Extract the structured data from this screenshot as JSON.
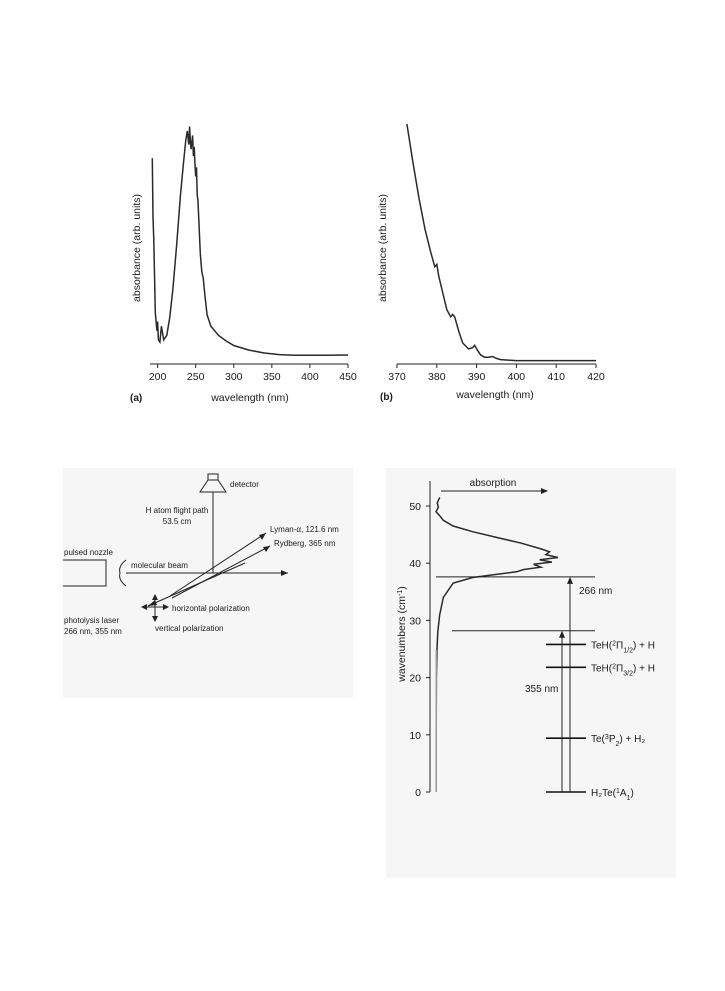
{
  "chart_data": [
    {
      "type": "line",
      "panel_label": "(a)",
      "xlabel": "wavelength (nm)",
      "ylabel": "absorbance (arb. units)",
      "xlim": [
        190,
        450
      ],
      "xticks": [
        200,
        250,
        300,
        350,
        400,
        450
      ],
      "x": [
        193,
        194,
        195,
        197,
        199,
        200,
        201,
        203,
        205,
        208,
        212,
        216,
        220,
        225,
        230,
        234,
        237,
        239,
        241,
        242,
        243,
        244,
        246,
        247,
        248,
        249,
        250,
        251,
        252,
        253,
        254,
        256,
        258,
        260,
        262,
        265,
        270,
        275,
        280,
        290,
        300,
        320,
        340,
        360,
        380,
        400,
        420,
        450
      ],
      "values": [
        0.88,
        0.62,
        0.52,
        0.2,
        0.12,
        0.16,
        0.08,
        0.07,
        0.14,
        0.08,
        0.1,
        0.18,
        0.3,
        0.5,
        0.72,
        0.86,
        0.96,
        1.0,
        0.94,
        1.02,
        0.95,
        0.92,
        0.98,
        0.89,
        0.93,
        0.86,
        0.8,
        0.84,
        0.72,
        0.69,
        0.62,
        0.46,
        0.38,
        0.35,
        0.28,
        0.19,
        0.14,
        0.12,
        0.1,
        0.075,
        0.055,
        0.035,
        0.022,
        0.015,
        0.012,
        0.012,
        0.012,
        0.013
      ]
    },
    {
      "type": "line",
      "panel_label": "(b)",
      "xlabel": "wavelength (nm)",
      "ylabel": "absorbance (arb. units)",
      "xlim": [
        370,
        420
      ],
      "xticks": [
        370,
        380,
        390,
        400,
        410,
        420
      ],
      "x": [
        372.5,
        374,
        375.5,
        377,
        378.5,
        379.5,
        380,
        380.5,
        381.5,
        382.5,
        383.5,
        384,
        384.5,
        385.5,
        386.5,
        388,
        389,
        389.5,
        390.2,
        391,
        392,
        393,
        394,
        395,
        396,
        398,
        400,
        405,
        410,
        415,
        420
      ],
      "values": [
        1.0,
        0.84,
        0.69,
        0.56,
        0.46,
        0.4,
        0.41,
        0.36,
        0.29,
        0.22,
        0.19,
        0.2,
        0.19,
        0.13,
        0.08,
        0.055,
        0.06,
        0.07,
        0.05,
        0.03,
        0.02,
        0.02,
        0.023,
        0.015,
        0.01,
        0.008,
        0.006,
        0.006,
        0.006,
        0.006,
        0.006
      ]
    },
    {
      "type": "line",
      "panel_label": "",
      "xlabel": "",
      "ylabel": "wavenumbers (cm-1)",
      "ylim": [
        0,
        55
      ],
      "yticks": [
        0,
        10,
        20,
        30,
        40,
        50
      ],
      "series_label": "absorption",
      "y": [
        51.5,
        50.5,
        49.8,
        49,
        48.3,
        47.5,
        46.5,
        45.5,
        44.5,
        43.5,
        42.5,
        42,
        41.5,
        41,
        40.6,
        40.2,
        39.8,
        39.3,
        38.9,
        38.5,
        38,
        37.5,
        36.5,
        34,
        31,
        28,
        25,
        20,
        10,
        0
      ],
      "values": [
        0.03,
        0.01,
        0.02,
        0.0,
        0.03,
        0.06,
        0.14,
        0.3,
        0.5,
        0.7,
        0.86,
        0.93,
        0.9,
        1.0,
        0.85,
        0.95,
        0.8,
        0.86,
        0.72,
        0.66,
        0.48,
        0.3,
        0.14,
        0.06,
        0.03,
        0.015,
        0.008,
        0.003,
        0.002,
        0.002
      ]
    }
  ],
  "figure_a": {
    "label": "(a)",
    "xlabel": "wavelength (nm)",
    "ylabel": "absorbance (arb. units)",
    "ticks": [
      "200",
      "250",
      "300",
      "350",
      "400",
      "450"
    ]
  },
  "figure_b": {
    "label": "(b)",
    "xlabel": "wavelength (nm)",
    "ylabel": "absorbance (arb. units)",
    "ticks": [
      "370",
      "380",
      "390",
      "400",
      "410",
      "420"
    ]
  },
  "apparatus": {
    "detector": "detector",
    "flight_path_line1": "H atom flight path",
    "flight_path_line2": "53.5 cm",
    "lyman": "Lyman-α, 121.6 nm",
    "rydberg": "Rydberg, 365 nm",
    "nozzle": "pulsed nozzle",
    "molecular_beam": "molecular beam",
    "laser_line1": "photolysis laser",
    "laser_line2": "266 nm, 355 nm",
    "horizontal": "horizontal polarization",
    "vertical": "vertical polarization"
  },
  "energy": {
    "absorption": "absorption",
    "ylabel_main": "wavenumbers (cm",
    "ylabel_sup": "-1",
    "ylabel_end": ")",
    "ticks": [
      "0",
      "10",
      "20",
      "30",
      "40",
      "50"
    ],
    "arrow_266": "266 nm",
    "arrow_355": "355 nm",
    "levels": [
      {
        "value": 25.8,
        "prefix": "TeH(",
        "sup": "2",
        "mid": "Π",
        "sub": "1/2",
        "suffix": ") + H"
      },
      {
        "value": 21.8,
        "prefix": "TeH(",
        "sup": "2",
        "mid": "Π",
        "sub": "3/2",
        "suffix": ") + H"
      },
      {
        "value": 9.4,
        "prefix": "Te(",
        "sup": "3",
        "mid": "P",
        "sub": "2",
        "suffix": ") + H₂"
      },
      {
        "value": 0,
        "prefix": "H₂Te(",
        "sup": "1",
        "mid": "A",
        "sub": "1",
        "suffix": ")"
      }
    ]
  }
}
